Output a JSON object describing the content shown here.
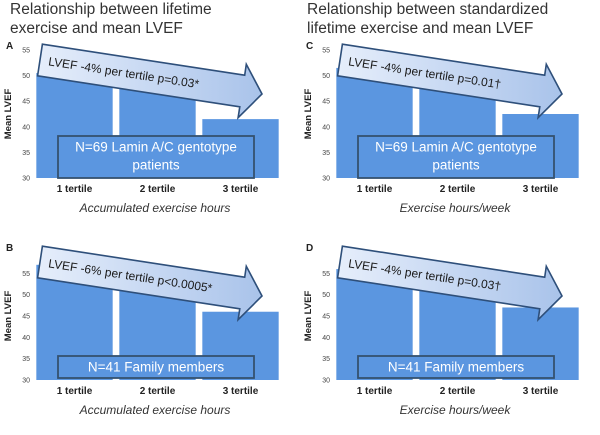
{
  "headings": {
    "left": "Relationship between lifetime\nexercise and mean LVEF",
    "right": "Relationship between standardized\nlifetime exercise and mean LVEF"
  },
  "colors": {
    "bar": "#5b96e0",
    "arrow_fill_light": "#e6eefb",
    "arrow_fill_dark": "#a9c3ea",
    "arrow_stroke": "#2e4f7a",
    "box_fill": "#5b96e0",
    "box_stroke": "#35516f"
  },
  "chart_data": [
    {
      "id": "A",
      "type": "bar",
      "panel_label": "A",
      "categories": [
        "1 tertile",
        "2 tertile",
        "3 tertile"
      ],
      "values": [
        50.5,
        49.5,
        41.5
      ],
      "ylabel": "Mean LVEF",
      "xlabel": "Accumulated exercise hours",
      "ylim": [
        30,
        55
      ],
      "yticks": [
        30,
        35,
        40,
        45,
        50,
        55
      ],
      "annotation": "LVEF -4% per tertile p=0.03*",
      "box_lines": [
        "N=69 Lamin A/C gentotype",
        "patients"
      ]
    },
    {
      "id": "C",
      "type": "bar",
      "panel_label": "C",
      "categories": [
        "1 tertile",
        "2 tertile",
        "3 tertile"
      ],
      "values": [
        51.5,
        48,
        42.5
      ],
      "ylabel": "Mean LVEF",
      "xlabel": "Exercise hours/week",
      "ylim": [
        30,
        55
      ],
      "yticks": [
        30,
        35,
        40,
        45,
        50,
        55
      ],
      "annotation": "LVEF -4% per tertile p=0.01†",
      "box_lines": [
        "N=69 Lamin A/C gentotype",
        "patients"
      ]
    },
    {
      "id": "B",
      "type": "bar",
      "panel_label": "B",
      "categories": [
        "1 tertile",
        "2 tertile",
        "3 tertile"
      ],
      "values": [
        57,
        51.5,
        46
      ],
      "ylabel": "Mean LVEF",
      "xlabel": "Accumulated exercise hours",
      "ylim": [
        30,
        60
      ],
      "yticks": [
        30,
        35,
        40,
        45,
        50,
        55
      ],
      "annotation": "LVEF -6% per tertile p<0.0005*",
      "box_lines": [
        "N=41 Family members"
      ]
    },
    {
      "id": "D",
      "type": "bar",
      "panel_label": "D",
      "categories": [
        "1 tertile",
        "2 tertile",
        "3 tertile"
      ],
      "values": [
        56,
        52,
        47
      ],
      "ylabel": "Mean LVEF",
      "xlabel": "Exercise hours/week",
      "ylim": [
        30,
        60
      ],
      "yticks": [
        30,
        35,
        40,
        45,
        50,
        55
      ],
      "annotation": "LVEF -4% per tertile p=0.03†",
      "box_lines": [
        "N=41 Family members"
      ]
    }
  ]
}
